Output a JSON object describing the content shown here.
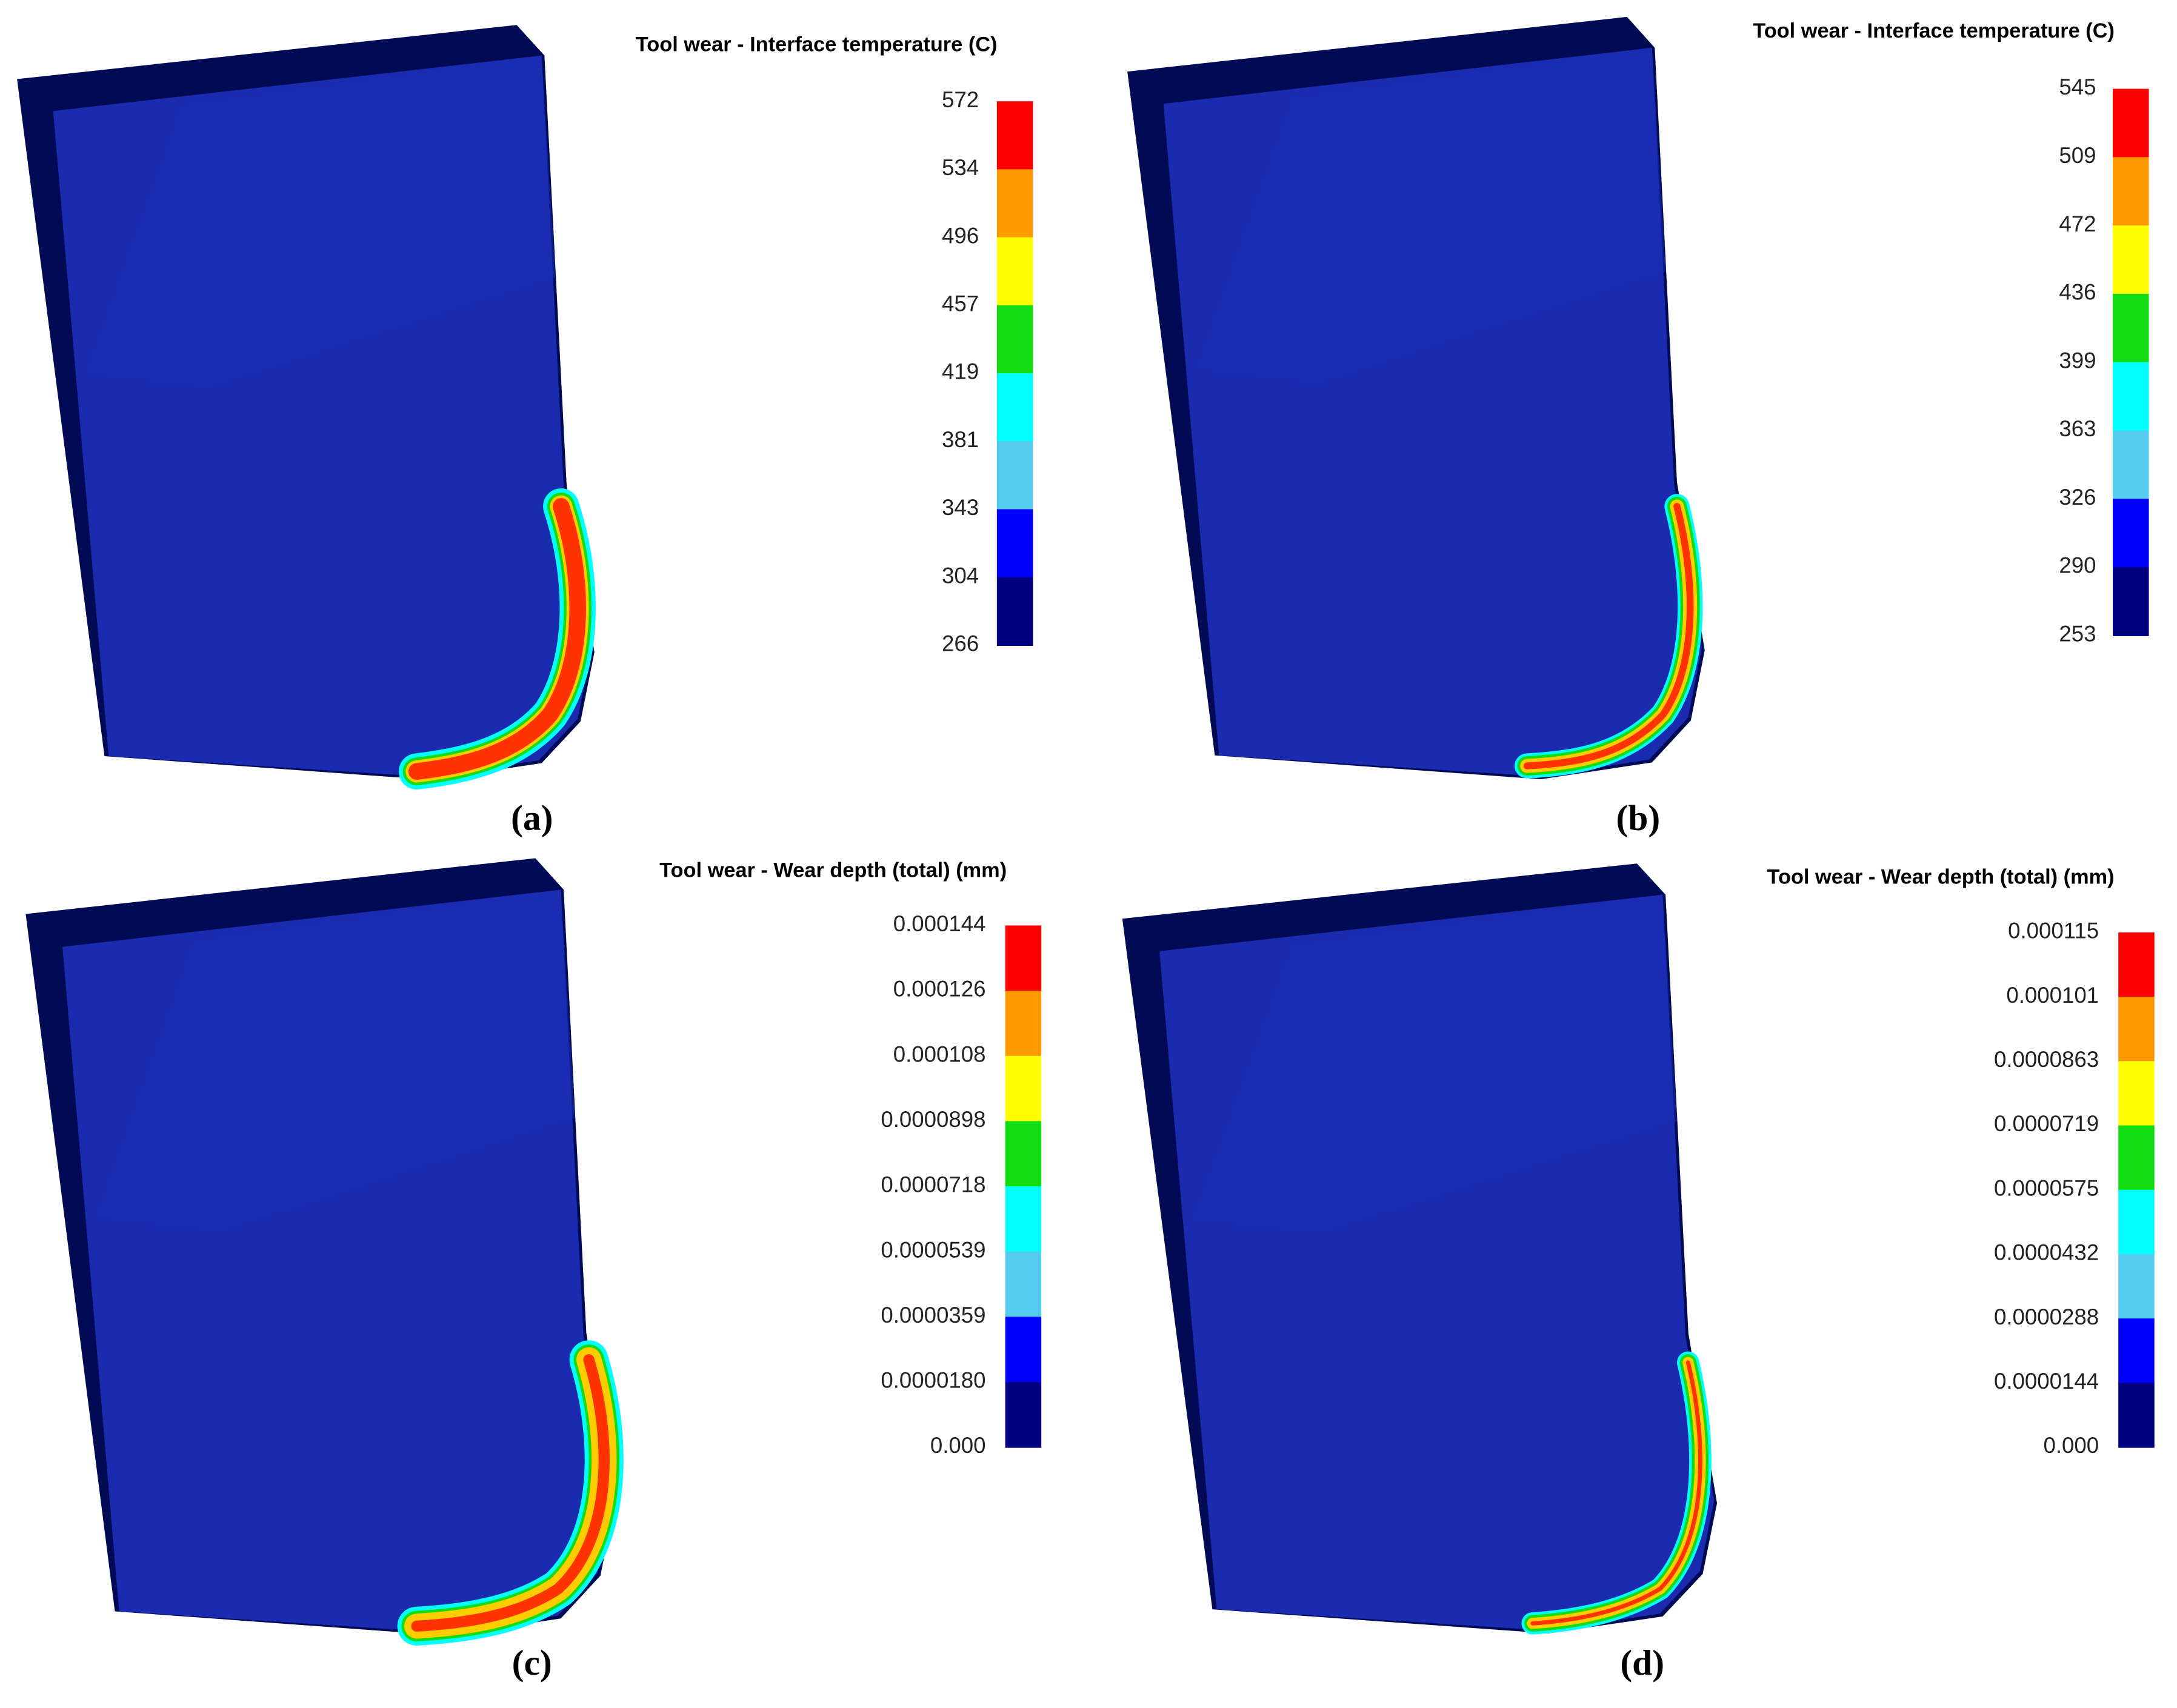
{
  "panels": [
    {
      "title": "Tool wear - Interface temperature (C)",
      "ticks": [
        "572",
        "534",
        "496",
        "457",
        "419",
        "381",
        "343",
        "304",
        "266"
      ],
      "caption": "(a)"
    },
    {
      "title": "Tool wear - Interface temperature (C)",
      "ticks": [
        "545",
        "509",
        "472",
        "436",
        "399",
        "363",
        "326",
        "290",
        "253"
      ],
      "caption": "(b)"
    },
    {
      "title": "Tool wear - Wear depth (total) (mm)",
      "ticks": [
        "0.000144",
        "0.000126",
        "0.000108",
        "0.0000898",
        "0.0000718",
        "0.0000539",
        "0.0000359",
        "0.0000180",
        "0.000"
      ],
      "caption": "(c)"
    },
    {
      "title": "Tool wear - Wear depth (total) (mm)",
      "ticks": [
        "0.000115",
        "0.000101",
        "0.0000863",
        "0.0000719",
        "0.0000575",
        "0.0000432",
        "0.0000288",
        "0.0000144",
        "0.000"
      ],
      "caption": "(d)"
    }
  ],
  "colors": [
    "#ff0000",
    "#ff9900",
    "#ffff00",
    "#11dd11",
    "#00ffff",
    "#55ccee",
    "#0000ff",
    "#000080"
  ]
}
